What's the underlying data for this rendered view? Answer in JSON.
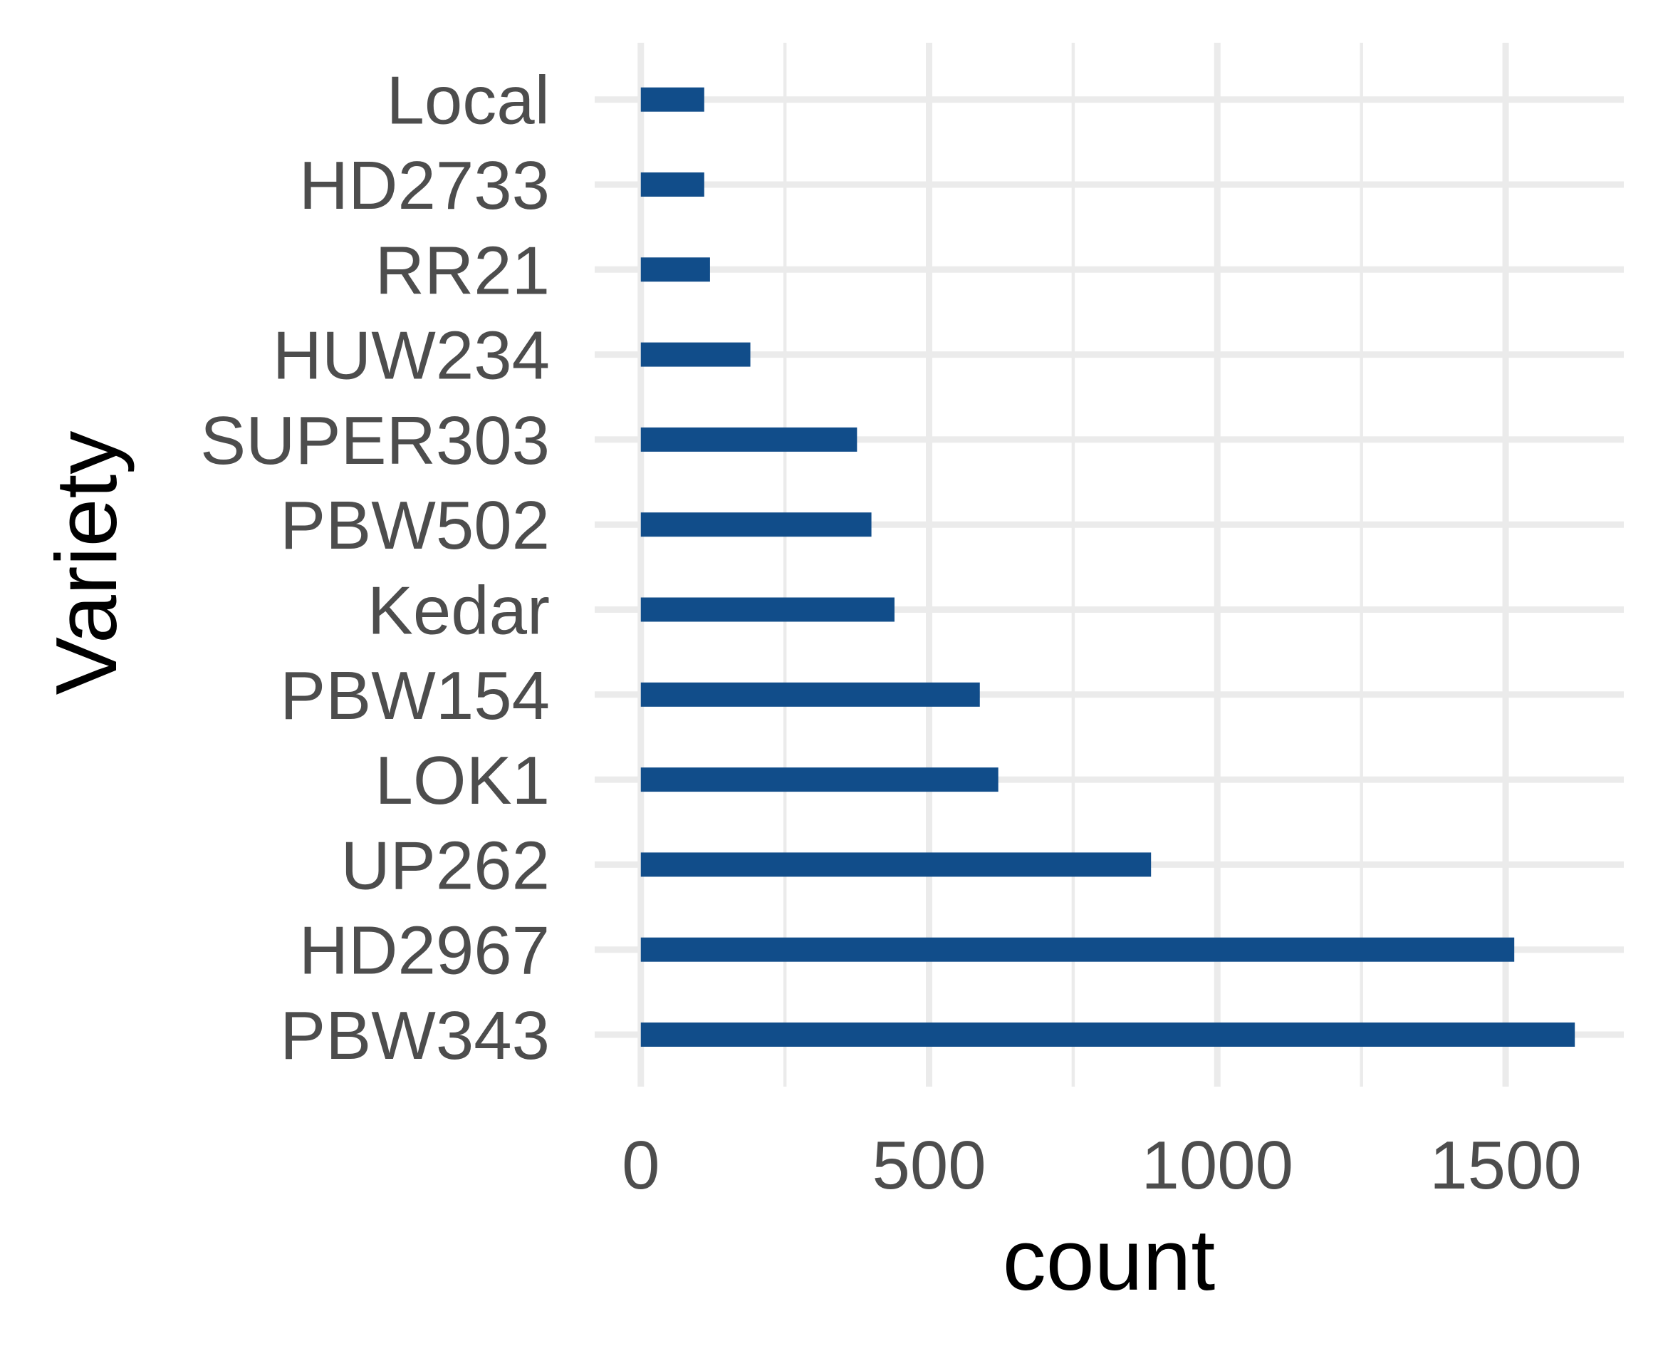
{
  "chart_data": {
    "type": "bar",
    "orientation": "horizontal",
    "title": "",
    "xlabel": "count",
    "ylabel": "Variety",
    "categories": [
      "PBW343",
      "HD2967",
      "UP262",
      "LOK1",
      "PBW154",
      "Kedar",
      "PBW502",
      "SUPER303",
      "HUW234",
      "RR21",
      "HD2733",
      "Local"
    ],
    "values": [
      1620,
      1515,
      885,
      620,
      588,
      440,
      400,
      375,
      190,
      120,
      110,
      110
    ],
    "xlim": [
      -80,
      1705
    ],
    "xticks": [
      0,
      500,
      1000,
      1500
    ],
    "grid": true,
    "bar_color": "#114d8a"
  }
}
